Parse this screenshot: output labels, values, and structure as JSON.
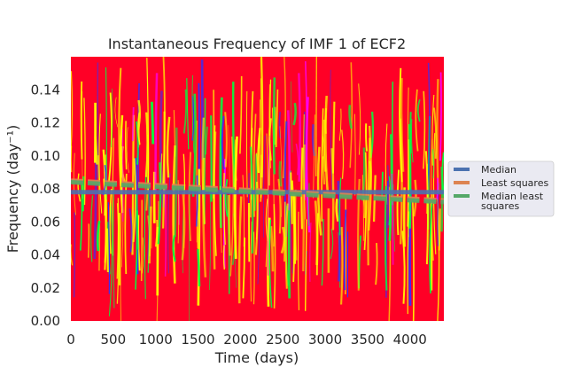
{
  "chart_data": {
    "type": "heatmap",
    "title": "Instantaneous Frequency of IMF 1 of ECF2",
    "xlabel": "Time (days)",
    "ylabel": "Frequency (day⁻¹)",
    "xlim": [
      0,
      4400
    ],
    "ylim": [
      0,
      0.16
    ],
    "x_ticks": [
      0,
      500,
      1000,
      1500,
      2000,
      2500,
      3000,
      3500,
      4000
    ],
    "y_ticks": [
      0.0,
      0.02,
      0.04,
      0.06,
      0.08,
      0.1,
      0.12,
      0.14
    ],
    "x_tick_labels": [
      "0",
      "500",
      "1000",
      "1500",
      "2000",
      "2500",
      "3000",
      "3500",
      "4000"
    ],
    "y_tick_labels": [
      "0.00",
      "0.02",
      "0.04",
      "0.06",
      "0.08",
      "0.10",
      "0.12",
      "0.14"
    ],
    "grid": false,
    "legend_position": "center-right outside",
    "background_color": "#ff0026",
    "colormap": [
      "#ff0026",
      "#ffff00",
      "#00ff40",
      "#3030ff",
      "#ff00ff"
    ],
    "series": [
      {
        "name": "Median",
        "color": "#4c72b0",
        "style": "solid",
        "x": [
          0,
          4400
        ],
        "y": [
          0.078,
          0.078
        ]
      },
      {
        "name": "Least squares",
        "color": "#dd8452",
        "style": "dashed",
        "x": [
          0,
          4400
        ],
        "y": [
          0.085,
          0.073
        ]
      },
      {
        "name": "Median least squares",
        "color": "#55a868",
        "style": "dashed",
        "x": [
          0,
          4400
        ],
        "y": [
          0.084,
          0.072
        ]
      }
    ],
    "legend": {
      "entries": [
        {
          "lines": [
            "Median"
          ],
          "color": "#4c72b0"
        },
        {
          "lines": [
            "Least squares"
          ],
          "color": "#dd8452"
        },
        {
          "lines": [
            "Median least",
            "squares"
          ],
          "color": "#55a868"
        }
      ]
    }
  }
}
